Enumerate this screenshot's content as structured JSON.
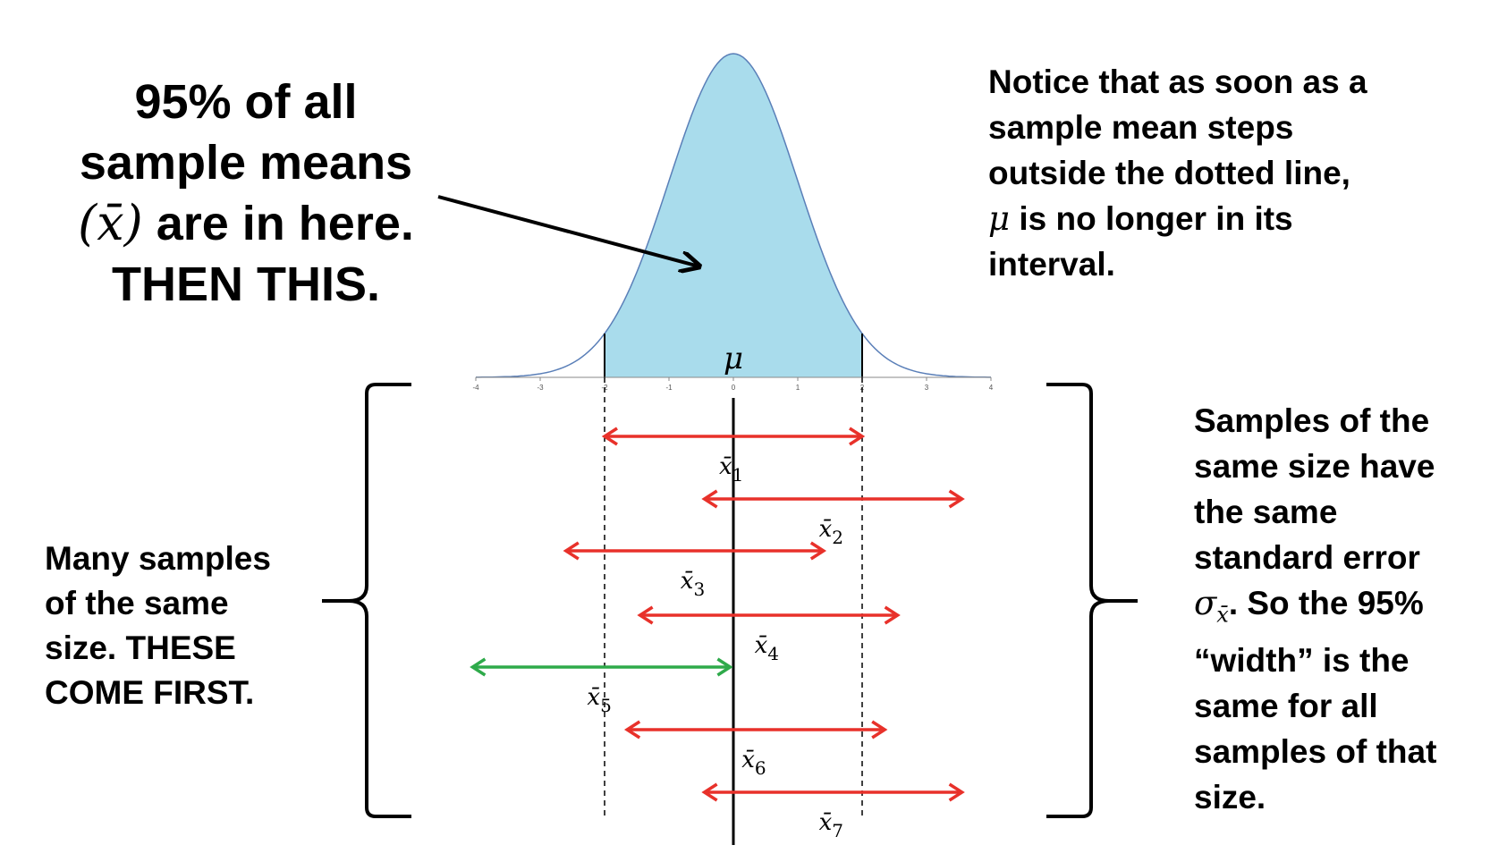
{
  "headline": {
    "line1": "95% of all",
    "line2": "sample means",
    "xbar_open": "(x̄)",
    "line3_rest": " are in here.",
    "line4": "THEN THIS."
  },
  "notice": {
    "lines": [
      "Notice that as soon as a",
      "sample mean steps",
      "outside the dotted line,"
    ],
    "mu": "μ",
    "line4_rest": " is no longer in its",
    "line5": "interval."
  },
  "left_note": {
    "lines": [
      "Many samples",
      "of the same",
      "size. THESE",
      "COME FIRST."
    ]
  },
  "right_note": {
    "lines": [
      "Samples of the",
      "same size have",
      "the same",
      "standard error"
    ],
    "sigma": "σ",
    "sigma_sub": "x̄",
    "line5_rest": ". So the 95%",
    "lines_after": [
      "“width” is the",
      "same for all",
      "samples of that",
      "size."
    ]
  },
  "curve": {
    "mu_label": "μ",
    "ticks": [
      "-4",
      "-3",
      "-2",
      "-1",
      "0",
      "1",
      "2",
      "3",
      "4"
    ],
    "fill_color": "#a9dcec",
    "line_color": "#5a7fb8"
  },
  "intervals": [
    {
      "label": "x̄",
      "sub": "1",
      "color": "#e8312a",
      "center": 0.0
    },
    {
      "label": "x̄",
      "sub": "2",
      "color": "#e8312a",
      "center": 1.55
    },
    {
      "label": "x̄",
      "sub": "3",
      "color": "#e8312a",
      "center": -0.6
    },
    {
      "label": "x̄",
      "sub": "4",
      "color": "#e8312a",
      "center": 0.55
    },
    {
      "label": "x̄",
      "sub": "5",
      "color": "#2eaa4a",
      "center": -2.05
    },
    {
      "label": "x̄",
      "sub": "6",
      "color": "#e8312a",
      "center": 0.35
    },
    {
      "label": "x̄",
      "sub": "7",
      "color": "#e8312a",
      "center": 1.55
    }
  ]
}
